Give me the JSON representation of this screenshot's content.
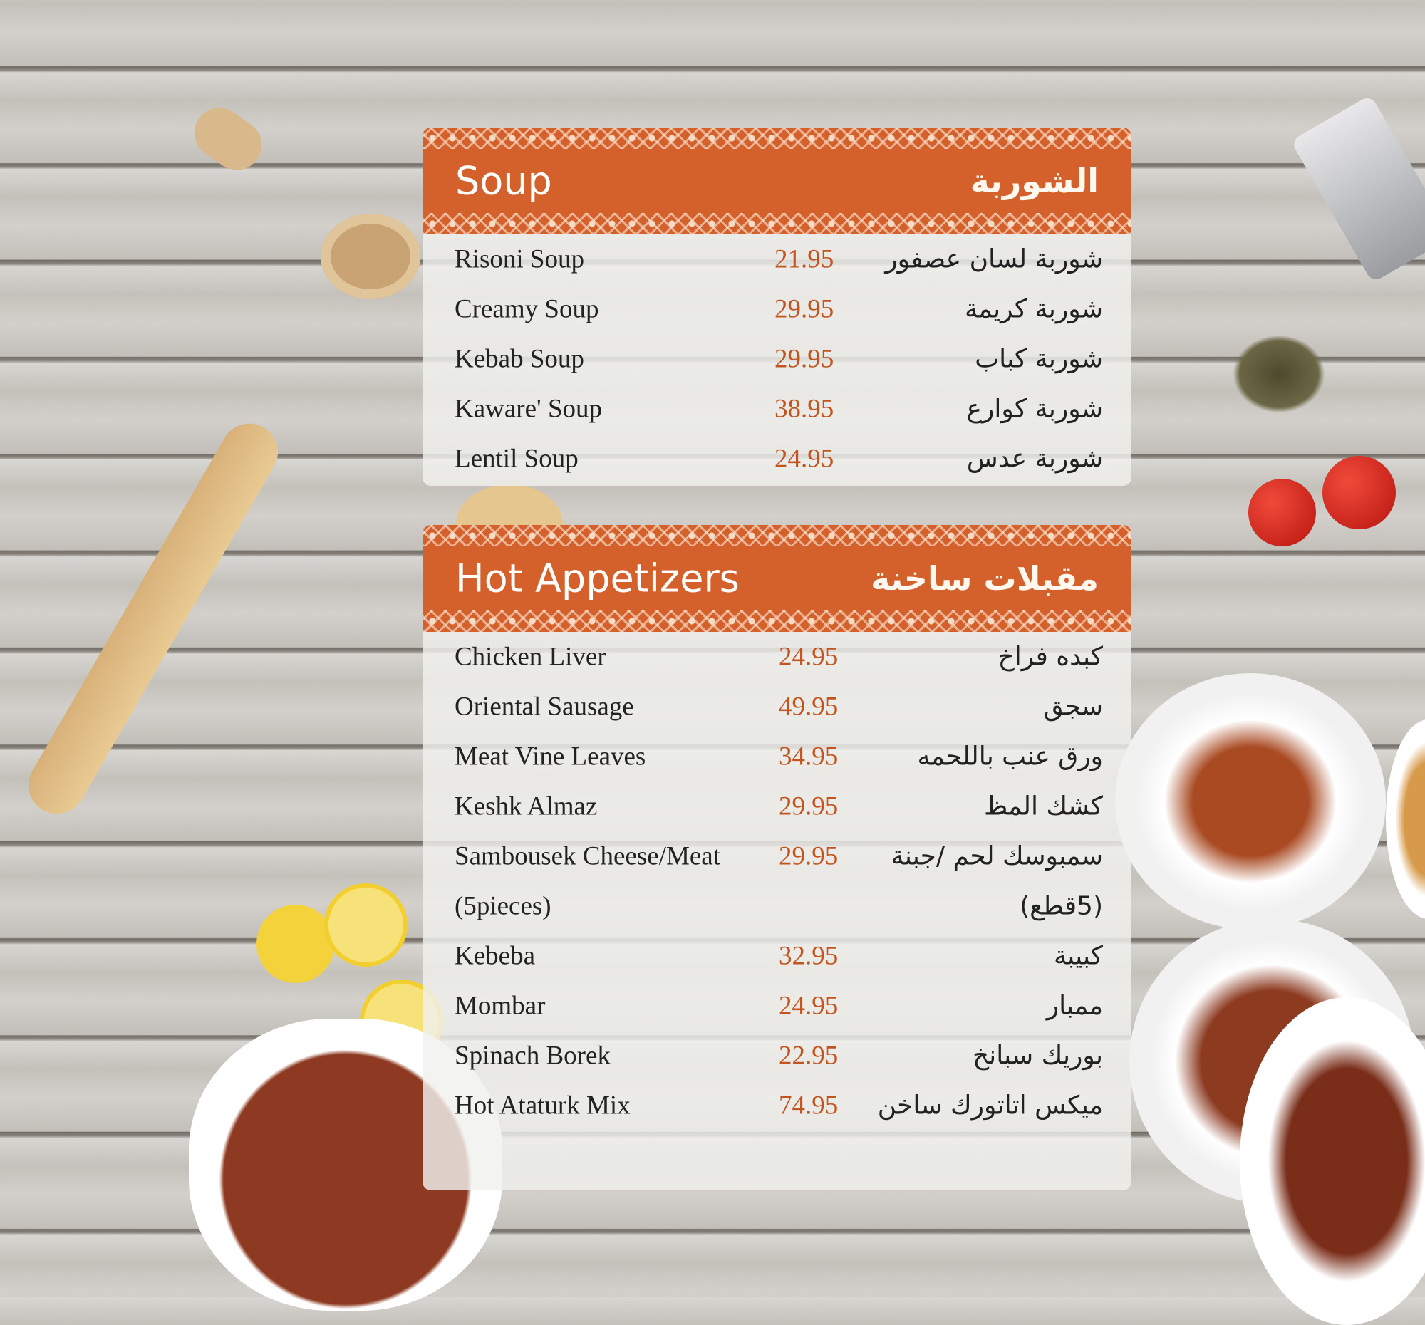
{
  "colors": {
    "header": "#d4612c",
    "price": "#c4541e",
    "background": "#c9c6c1"
  },
  "soup": {
    "title_en": "Soup",
    "title_ar": "الشوربة",
    "items": [
      {
        "en": "Risoni Soup",
        "price": "21.95",
        "ar": "شوربة لسان عصفور"
      },
      {
        "en": "Creamy Soup",
        "price": "29.95",
        "ar": "شوربة كريمة"
      },
      {
        "en": "Kebab Soup",
        "price": "29.95",
        "ar": "شوربة كباب"
      },
      {
        "en": "Kaware' Soup",
        "price": "38.95",
        "ar": "شوربة كوارع"
      },
      {
        "en": "Lentil Soup",
        "price": "24.95",
        "ar": "شوربة عدس"
      }
    ]
  },
  "hot": {
    "title_en": "Hot Appetizers",
    "title_ar": "مقبلات ساخنة",
    "items": [
      {
        "en": "Chicken Liver",
        "price": "24.95",
        "ar": "كبده فراخ"
      },
      {
        "en": "Oriental Sausage",
        "price": "49.95",
        "ar": "سجق"
      },
      {
        "en": "Meat Vine Leaves",
        "price": "34.95",
        "ar": "ورق عنب باللحمه"
      },
      {
        "en": "Keshk Almaz",
        "price": "29.95",
        "ar": "كشك المظ"
      },
      {
        "en": "Sambousek Cheese/Meat",
        "price": "29.95",
        "ar": "سمبوسك لحم /جبنة"
      },
      {
        "en": "(5pieces)",
        "price": "",
        "ar": "(5قطع)"
      },
      {
        "en": "Kebeba",
        "price": "32.95",
        "ar": "كبيبة"
      },
      {
        "en": "Mombar",
        "price": "24.95",
        "ar": "ممبار"
      },
      {
        "en": "Spinach Borek",
        "price": "22.95",
        "ar": "بوريك سبانخ"
      },
      {
        "en": "Hot Ataturk Mix",
        "price": "74.95",
        "ar": "ميكس اتاتورك ساخن"
      }
    ]
  }
}
